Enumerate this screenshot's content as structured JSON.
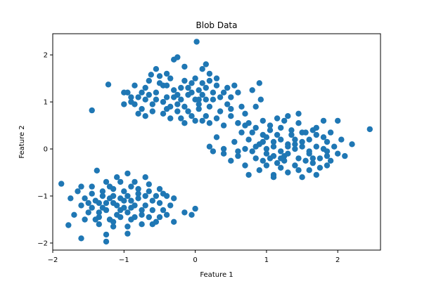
{
  "chart_data": {
    "type": "scatter",
    "title": "Blob Data",
    "xlabel": "Feature 1",
    "ylabel": "Feature 2",
    "xlim": [
      -2.0,
      2.6
    ],
    "ylim": [
      -2.15,
      2.45
    ],
    "xticks": [
      -2,
      -1,
      0,
      1,
      2
    ],
    "yticks": [
      -2,
      -1,
      0,
      1,
      2
    ],
    "grid": false,
    "legend": "none",
    "marker_color": "#1f77b4",
    "series": [
      {
        "points": [
          [
            -0.55,
            1.2
          ],
          [
            -0.45,
            1.35
          ],
          [
            -0.3,
            1.1
          ],
          [
            -0.2,
            1.3
          ],
          [
            -0.1,
            1.15
          ],
          [
            0.05,
            1.25
          ],
          [
            0.15,
            1.05
          ],
          [
            0.25,
            1.2
          ],
          [
            -0.6,
            0.95
          ],
          [
            -0.4,
            0.85
          ],
          [
            -0.25,
            0.95
          ],
          [
            -0.1,
            0.8
          ],
          [
            0.05,
            0.95
          ],
          [
            0.2,
            0.9
          ],
          [
            -0.7,
            1.3
          ],
          [
            -0.8,
            1.1
          ],
          [
            -0.9,
            1.0
          ],
          [
            -0.65,
            1.45
          ],
          [
            -0.5,
            1.55
          ],
          [
            -0.35,
            1.5
          ],
          [
            -0.15,
            1.45
          ],
          [
            0.0,
            1.5
          ],
          [
            0.1,
            1.4
          ],
          [
            0.3,
            1.35
          ],
          [
            0.4,
            1.2
          ],
          [
            0.5,
            1.1
          ],
          [
            0.45,
            0.95
          ],
          [
            0.35,
            0.8
          ],
          [
            0.15,
            0.7
          ],
          [
            0.0,
            0.6
          ],
          [
            -0.2,
            0.65
          ],
          [
            -0.45,
            0.75
          ],
          [
            -0.75,
            0.85
          ],
          [
            -0.95,
            1.2
          ],
          [
            -1.0,
            0.95
          ],
          [
            -0.85,
            1.35
          ],
          [
            -0.55,
            1.7
          ],
          [
            -0.3,
            1.9
          ],
          [
            -0.15,
            1.75
          ],
          [
            0.1,
            1.7
          ],
          [
            0.2,
            1.6
          ],
          [
            0.3,
            1.5
          ],
          [
            0.55,
            1.35
          ],
          [
            0.6,
            1.2
          ],
          [
            0.65,
            0.9
          ],
          [
            0.5,
            0.7
          ],
          [
            0.4,
            0.5
          ],
          [
            0.2,
            0.55
          ],
          [
            -0.05,
            0.7
          ],
          [
            -0.35,
            0.65
          ],
          [
            -0.6,
            0.8
          ],
          [
            -0.7,
            1.05
          ],
          [
            -0.4,
            1.1
          ],
          [
            -0.2,
            1.05
          ],
          [
            0.0,
            1.05
          ],
          [
            -0.1,
            1.3
          ],
          [
            -0.3,
            1.25
          ],
          [
            -0.5,
            1.4
          ],
          [
            0.25,
            1.05
          ],
          [
            0.1,
            1.15
          ],
          [
            -0.75,
            1.2
          ],
          [
            -0.15,
            0.9
          ],
          [
            0.05,
            0.85
          ],
          [
            0.35,
            1.1
          ],
          [
            -0.45,
            1.0
          ],
          [
            -0.25,
            0.8
          ],
          [
            0.45,
            1.3
          ],
          [
            -0.65,
            1.15
          ],
          [
            -0.05,
            1.2
          ],
          [
            0.15,
            1.3
          ],
          [
            0.02,
            2.28
          ],
          [
            -0.25,
            1.95
          ],
          [
            0.15,
            1.8
          ],
          [
            -0.62,
            1.58
          ],
          [
            0.8,
            1.25
          ],
          [
            0.92,
            1.05
          ],
          [
            0.85,
            0.9
          ],
          [
            0.6,
            0.55
          ],
          [
            0.75,
            0.55
          ],
          [
            -1.0,
            1.2
          ],
          [
            -1.22,
            1.37
          ],
          [
            -1.45,
            0.82
          ],
          [
            -0.85,
            0.95
          ],
          [
            -0.4,
            1.35
          ],
          [
            -0.05,
            1.4
          ],
          [
            0.2,
            1.45
          ],
          [
            -0.7,
            0.7
          ],
          [
            -0.55,
            1.05
          ],
          [
            -0.35,
            0.9
          ],
          [
            0.5,
            0.85
          ],
          [
            0.05,
            1.05
          ],
          [
            -0.25,
            1.15
          ],
          [
            -0.8,
            0.75
          ],
          [
            0.7,
            0.75
          ],
          [
            0.9,
            1.4
          ],
          [
            0.3,
            0.65
          ],
          [
            -0.15,
            0.55
          ],
          [
            -0.4,
            1.6
          ],
          [
            -0.9,
            1.1
          ],
          [
            0.1,
            0.6
          ],
          [
            1.0,
            0.0
          ],
          [
            1.1,
            0.15
          ],
          [
            1.2,
            -0.05
          ],
          [
            1.3,
            0.1
          ],
          [
            1.4,
            0.0
          ],
          [
            1.5,
            0.15
          ],
          [
            1.6,
            -0.1
          ],
          [
            1.7,
            0.05
          ],
          [
            0.9,
            0.1
          ],
          [
            0.8,
            -0.05
          ],
          [
            1.05,
            -0.2
          ],
          [
            1.25,
            -0.25
          ],
          [
            1.45,
            -0.2
          ],
          [
            1.65,
            -0.3
          ],
          [
            1.85,
            -0.15
          ],
          [
            1.95,
            0.05
          ],
          [
            1.8,
            0.25
          ],
          [
            1.55,
            0.35
          ],
          [
            1.35,
            0.4
          ],
          [
            1.15,
            0.3
          ],
          [
            0.95,
            0.3
          ],
          [
            0.75,
            0.2
          ],
          [
            0.7,
            0.0
          ],
          [
            0.85,
            -0.2
          ],
          [
            1.0,
            -0.35
          ],
          [
            1.2,
            -0.4
          ],
          [
            1.4,
            -0.35
          ],
          [
            1.6,
            -0.45
          ],
          [
            1.75,
            -0.4
          ],
          [
            1.9,
            -0.25
          ],
          [
            2.0,
            -0.1
          ],
          [
            2.05,
            0.2
          ],
          [
            1.9,
            0.35
          ],
          [
            1.7,
            0.45
          ],
          [
            1.45,
            0.55
          ],
          [
            1.25,
            0.6
          ],
          [
            1.05,
            0.5
          ],
          [
            0.85,
            0.45
          ],
          [
            0.65,
            0.35
          ],
          [
            0.55,
            0.15
          ],
          [
            0.6,
            -0.15
          ],
          [
            0.7,
            -0.35
          ],
          [
            0.9,
            -0.45
          ],
          [
            1.1,
            -0.55
          ],
          [
            1.3,
            -0.5
          ],
          [
            1.5,
            -0.6
          ],
          [
            1.7,
            -0.55
          ],
          [
            1.1,
            0.05
          ],
          [
            1.3,
            -0.1
          ],
          [
            1.5,
            0.05
          ],
          [
            0.4,
            0.0
          ],
          [
            0.2,
            0.05
          ],
          [
            0.25,
            -0.05
          ],
          [
            0.6,
            -0.05
          ],
          [
            2.45,
            0.42
          ],
          [
            2.2,
            0.1
          ],
          [
            2.1,
            -0.15
          ],
          [
            2.0,
            0.6
          ],
          [
            1.85,
            -0.35
          ],
          [
            1.8,
            0.6
          ],
          [
            1.65,
            0.4
          ],
          [
            1.45,
            0.75
          ],
          [
            1.3,
            0.7
          ],
          [
            1.15,
            0.65
          ],
          [
            0.95,
            0.6
          ],
          [
            0.7,
            0.5
          ],
          [
            0.6,
            0.55
          ],
          [
            0.3,
            0.25
          ],
          [
            0.4,
            -0.1
          ],
          [
            0.5,
            -0.25
          ],
          [
            0.75,
            -0.55
          ],
          [
            1.1,
            -0.6
          ],
          [
            1.85,
            -0.05
          ],
          [
            1.2,
            0.2
          ],
          [
            1.4,
            0.2
          ],
          [
            1.0,
            -0.1
          ],
          [
            1.6,
            0.2
          ],
          [
            1.25,
            -0.15
          ],
          [
            0.95,
            -0.25
          ],
          [
            1.75,
            -0.2
          ],
          [
            1.35,
            0.3
          ],
          [
            1.55,
            -0.25
          ],
          [
            1.05,
            0.4
          ],
          [
            1.15,
            -0.3
          ],
          [
            1.85,
            0.15
          ],
          [
            0.8,
            0.35
          ],
          [
            1.45,
            -0.45
          ],
          [
            1.0,
            0.25
          ],
          [
            1.2,
            0.45
          ],
          [
            1.65,
            -0.2
          ],
          [
            1.3,
            0.05
          ],
          [
            1.5,
            0.35
          ],
          [
            0.85,
            0.05
          ],
          [
            1.1,
            -0.15
          ],
          [
            1.7,
            0.3
          ],
          [
            1.4,
            0.1
          ],
          [
            0.95,
            0.15
          ],
          [
            1.6,
            -0.05
          ],
          [
            1.2,
            -0.2
          ],
          [
            1.8,
            0.0
          ],
          [
            -1.0,
            -1.1
          ],
          [
            -0.9,
            -1.25
          ],
          [
            -1.1,
            -1.2
          ],
          [
            -1.2,
            -1.05
          ],
          [
            -0.8,
            -1.05
          ],
          [
            -0.7,
            -1.2
          ],
          [
            -1.3,
            -1.25
          ],
          [
            -1.4,
            -1.1
          ],
          [
            -1.0,
            -0.9
          ],
          [
            -0.9,
            -0.8
          ],
          [
            -1.15,
            -0.85
          ],
          [
            -1.3,
            -0.9
          ],
          [
            -1.45,
            -0.95
          ],
          [
            -1.55,
            -1.05
          ],
          [
            -1.6,
            -1.2
          ],
          [
            -1.5,
            -1.35
          ],
          [
            -1.35,
            -1.45
          ],
          [
            -1.2,
            -1.5
          ],
          [
            -1.05,
            -1.45
          ],
          [
            -0.9,
            -1.5
          ],
          [
            -0.75,
            -1.4
          ],
          [
            -0.6,
            -1.3
          ],
          [
            -0.5,
            -1.15
          ],
          [
            -0.55,
            -1.0
          ],
          [
            -0.65,
            -0.9
          ],
          [
            -0.8,
            -0.85
          ],
          [
            -0.75,
            -1.6
          ],
          [
            -0.95,
            -1.65
          ],
          [
            -1.15,
            -1.65
          ],
          [
            -1.35,
            -1.6
          ],
          [
            -1.55,
            -1.5
          ],
          [
            -1.7,
            -1.4
          ],
          [
            -1.75,
            -1.05
          ],
          [
            -1.65,
            -0.9
          ],
          [
            -1.45,
            -0.8
          ],
          [
            -1.25,
            -0.7
          ],
          [
            -1.05,
            -0.7
          ],
          [
            -0.85,
            -0.7
          ],
          [
            -0.65,
            -0.75
          ],
          [
            -0.5,
            -0.85
          ],
          [
            -0.4,
            -1.0
          ],
          [
            -0.35,
            -1.2
          ],
          [
            -0.4,
            -1.4
          ],
          [
            -0.55,
            -1.55
          ],
          [
            -0.95,
            -1.8
          ],
          [
            -1.25,
            -1.82
          ],
          [
            -1.25,
            -1.97
          ],
          [
            -1.6,
            -1.9
          ],
          [
            -1.78,
            -1.62
          ],
          [
            -1.88,
            -0.74
          ],
          [
            -1.38,
            -0.46
          ],
          [
            -0.95,
            -0.52
          ],
          [
            -1.1,
            -0.6
          ],
          [
            -0.7,
            -0.6
          ],
          [
            -0.45,
            -0.95
          ],
          [
            -0.3,
            -1.05
          ],
          [
            -0.45,
            -1.3
          ],
          [
            -0.3,
            -1.55
          ],
          [
            -0.15,
            -1.35
          ],
          [
            -0.05,
            -1.4
          ],
          [
            0.0,
            -1.27
          ],
          [
            -0.6,
            -1.6
          ],
          [
            -0.85,
            -1.2
          ],
          [
            -1.05,
            -1.3
          ],
          [
            -1.25,
            -1.3
          ],
          [
            -1.35,
            -1.15
          ],
          [
            -1.15,
            -1.0
          ],
          [
            -0.95,
            -1.0
          ],
          [
            -0.75,
            -1.3
          ],
          [
            -1.45,
            -1.25
          ],
          [
            -1.2,
            -0.8
          ],
          [
            -0.85,
            -1.45
          ],
          [
            -1.1,
            -1.4
          ],
          [
            -1.5,
            -1.15
          ],
          [
            -0.6,
            -1.1
          ],
          [
            -1.35,
            -1.35
          ],
          [
            -0.95,
            -1.35
          ],
          [
            -1.05,
            -1.05
          ],
          [
            -0.8,
            -0.95
          ],
          [
            -1.25,
            -1.15
          ],
          [
            -1.6,
            -0.8
          ],
          [
            -1.4,
            -1.5
          ],
          [
            -0.65,
            -1.45
          ],
          [
            -1.15,
            -1.55
          ],
          [
            -0.5,
            -1.45
          ],
          [
            -0.7,
            -1.0
          ],
          [
            -1.3,
            -1.0
          ],
          [
            -0.9,
            -1.1
          ],
          [
            -1.15,
            -1.15
          ],
          [
            -1.0,
            -1.25
          ]
        ]
      }
    ]
  }
}
